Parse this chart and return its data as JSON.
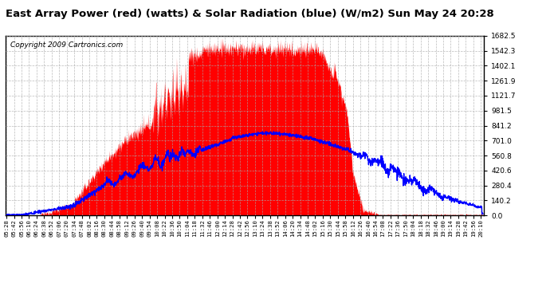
{
  "title": "East Array Power (red) (watts) & Solar Radiation (blue) (W/m2) Sun May 24 20:28",
  "copyright": "Copyright 2009 Cartronics.com",
  "y_ticks": [
    0.0,
    140.2,
    280.4,
    420.6,
    560.8,
    701.0,
    841.2,
    981.5,
    1121.7,
    1261.9,
    1402.1,
    1542.3,
    1682.5
  ],
  "y_max": 1682.5,
  "y_min": 0.0,
  "background_color": "#ffffff",
  "plot_bg_color": "#ffffff",
  "red_fill_color": "#ff0000",
  "blue_line_color": "#0000ff",
  "grid_color": "#aaaaaa",
  "title_fontsize": 9.5,
  "copyright_fontsize": 6.5,
  "tick_step_minutes": 14,
  "x_start": "05:28",
  "x_end": "20:14"
}
